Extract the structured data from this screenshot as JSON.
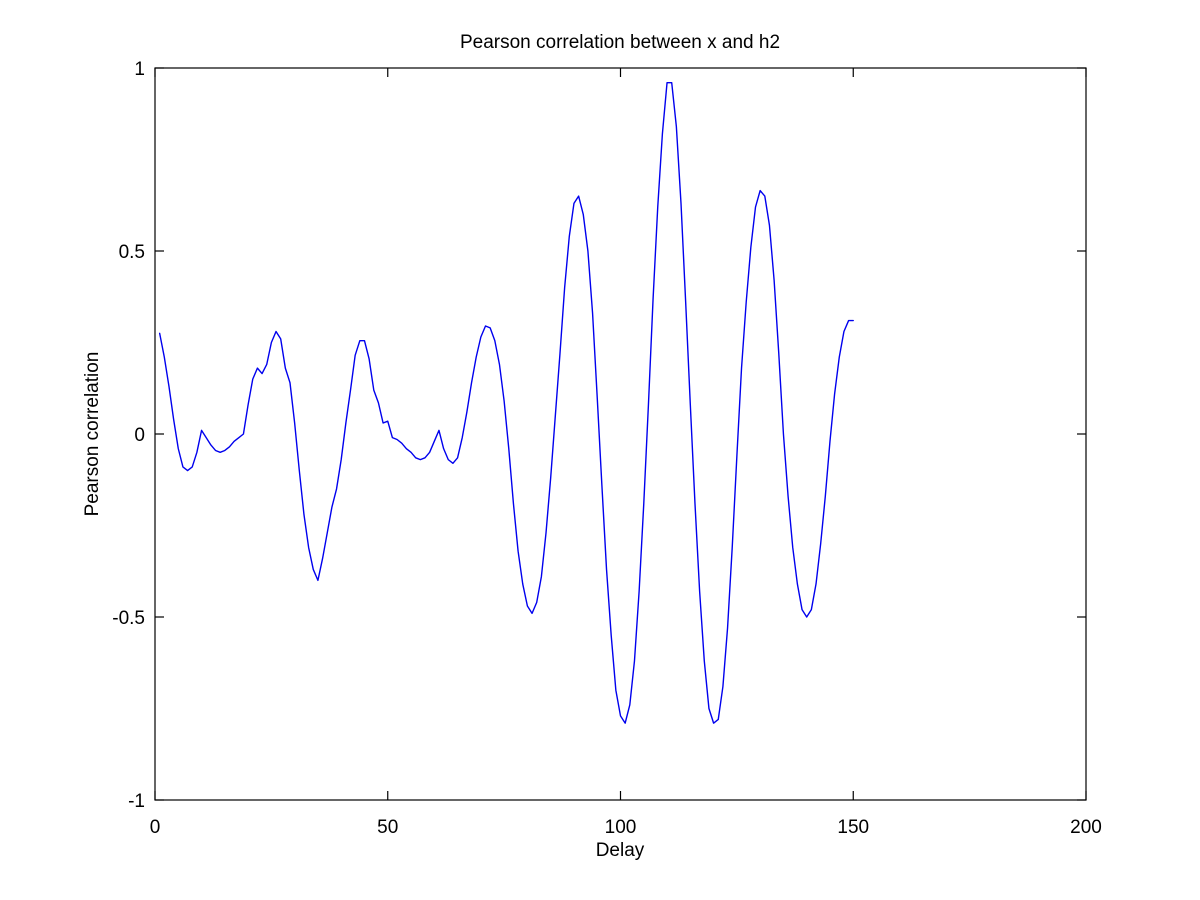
{
  "chart_data": {
    "type": "line",
    "title": "Pearson correlation between x and h2",
    "xlabel": "Delay",
    "ylabel": "Pearson correlation",
    "xlim": [
      0,
      200
    ],
    "ylim": [
      -1,
      1
    ],
    "xticks": [
      0,
      50,
      100,
      150,
      200
    ],
    "yticks": [
      -1,
      -0.5,
      0,
      0.5,
      1
    ],
    "xtick_labels": [
      "0",
      "50",
      "100",
      "150",
      "200"
    ],
    "ytick_labels": [
      "-1",
      "-0.5",
      "0",
      "0.5",
      "1"
    ],
    "grid": false,
    "legend": "none",
    "series": [
      {
        "color": "#0000ee",
        "x": [
          1,
          2,
          3,
          4,
          5,
          6,
          7,
          8,
          9,
          10,
          11,
          12,
          13,
          14,
          15,
          16,
          17,
          18,
          19,
          20,
          21,
          22,
          23,
          24,
          25,
          26,
          27,
          28,
          29,
          30,
          31,
          32,
          33,
          34,
          35,
          36,
          37,
          38,
          39,
          40,
          41,
          42,
          43,
          44,
          45,
          46,
          47,
          48,
          49,
          50,
          51,
          52,
          53,
          54,
          55,
          56,
          57,
          58,
          59,
          60,
          61,
          62,
          63,
          64,
          65,
          66,
          67,
          68,
          69,
          70,
          71,
          72,
          73,
          74,
          75,
          76,
          77,
          78,
          79,
          80,
          81,
          82,
          83,
          84,
          85,
          86,
          87,
          88,
          89,
          90,
          91,
          92,
          93,
          94,
          95,
          96,
          97,
          98,
          99,
          100,
          101,
          102,
          103,
          104,
          105,
          106,
          107,
          108,
          109,
          110,
          111,
          112,
          113,
          114,
          115,
          116,
          117,
          118,
          119,
          120,
          121,
          122,
          123,
          124,
          125,
          126,
          127,
          128,
          129,
          130,
          131,
          132,
          133,
          134,
          135,
          136,
          137,
          138,
          139,
          140,
          141,
          142,
          143,
          144,
          145,
          146,
          147,
          148,
          149,
          150
        ],
        "y": [
          0.275,
          0.21,
          0.13,
          0.04,
          -0.04,
          -0.09,
          -0.1,
          -0.09,
          -0.05,
          0.01,
          -0.01,
          -0.03,
          -0.045,
          -0.05,
          -0.045,
          -0.035,
          -0.02,
          -0.01,
          0.0,
          0.08,
          0.15,
          0.18,
          0.165,
          0.19,
          0.25,
          0.28,
          0.26,
          0.18,
          0.14,
          0.03,
          -0.1,
          -0.22,
          -0.31,
          -0.37,
          -0.4,
          -0.34,
          -0.27,
          -0.2,
          -0.15,
          -0.07,
          0.03,
          0.12,
          0.215,
          0.255,
          0.255,
          0.205,
          0.12,
          0.085,
          0.03,
          0.035,
          -0.01,
          -0.015,
          -0.025,
          -0.04,
          -0.05,
          -0.065,
          -0.07,
          -0.065,
          -0.05,
          -0.02,
          0.01,
          -0.04,
          -0.07,
          -0.08,
          -0.065,
          -0.01,
          0.06,
          0.14,
          0.21,
          0.265,
          0.295,
          0.29,
          0.255,
          0.19,
          0.09,
          -0.04,
          -0.19,
          -0.32,
          -0.41,
          -0.47,
          -0.49,
          -0.46,
          -0.39,
          -0.27,
          -0.12,
          0.05,
          0.22,
          0.4,
          0.54,
          0.63,
          0.65,
          0.6,
          0.5,
          0.33,
          0.1,
          -0.14,
          -0.37,
          -0.55,
          -0.7,
          -0.77,
          -0.79,
          -0.74,
          -0.62,
          -0.43,
          -0.19,
          0.08,
          0.37,
          0.62,
          0.82,
          0.96,
          0.96,
          0.84,
          0.63,
          0.36,
          0.08,
          -0.19,
          -0.43,
          -0.62,
          -0.75,
          -0.79,
          -0.78,
          -0.69,
          -0.53,
          -0.31,
          -0.06,
          0.18,
          0.36,
          0.51,
          0.62,
          0.665,
          0.65,
          0.57,
          0.42,
          0.22,
          0.0,
          -0.17,
          -0.31,
          -0.41,
          -0.48,
          -0.5,
          -0.48,
          -0.41,
          -0.3,
          -0.17,
          -0.02,
          0.11,
          0.21,
          0.28,
          0.31,
          0.31
        ]
      }
    ]
  }
}
